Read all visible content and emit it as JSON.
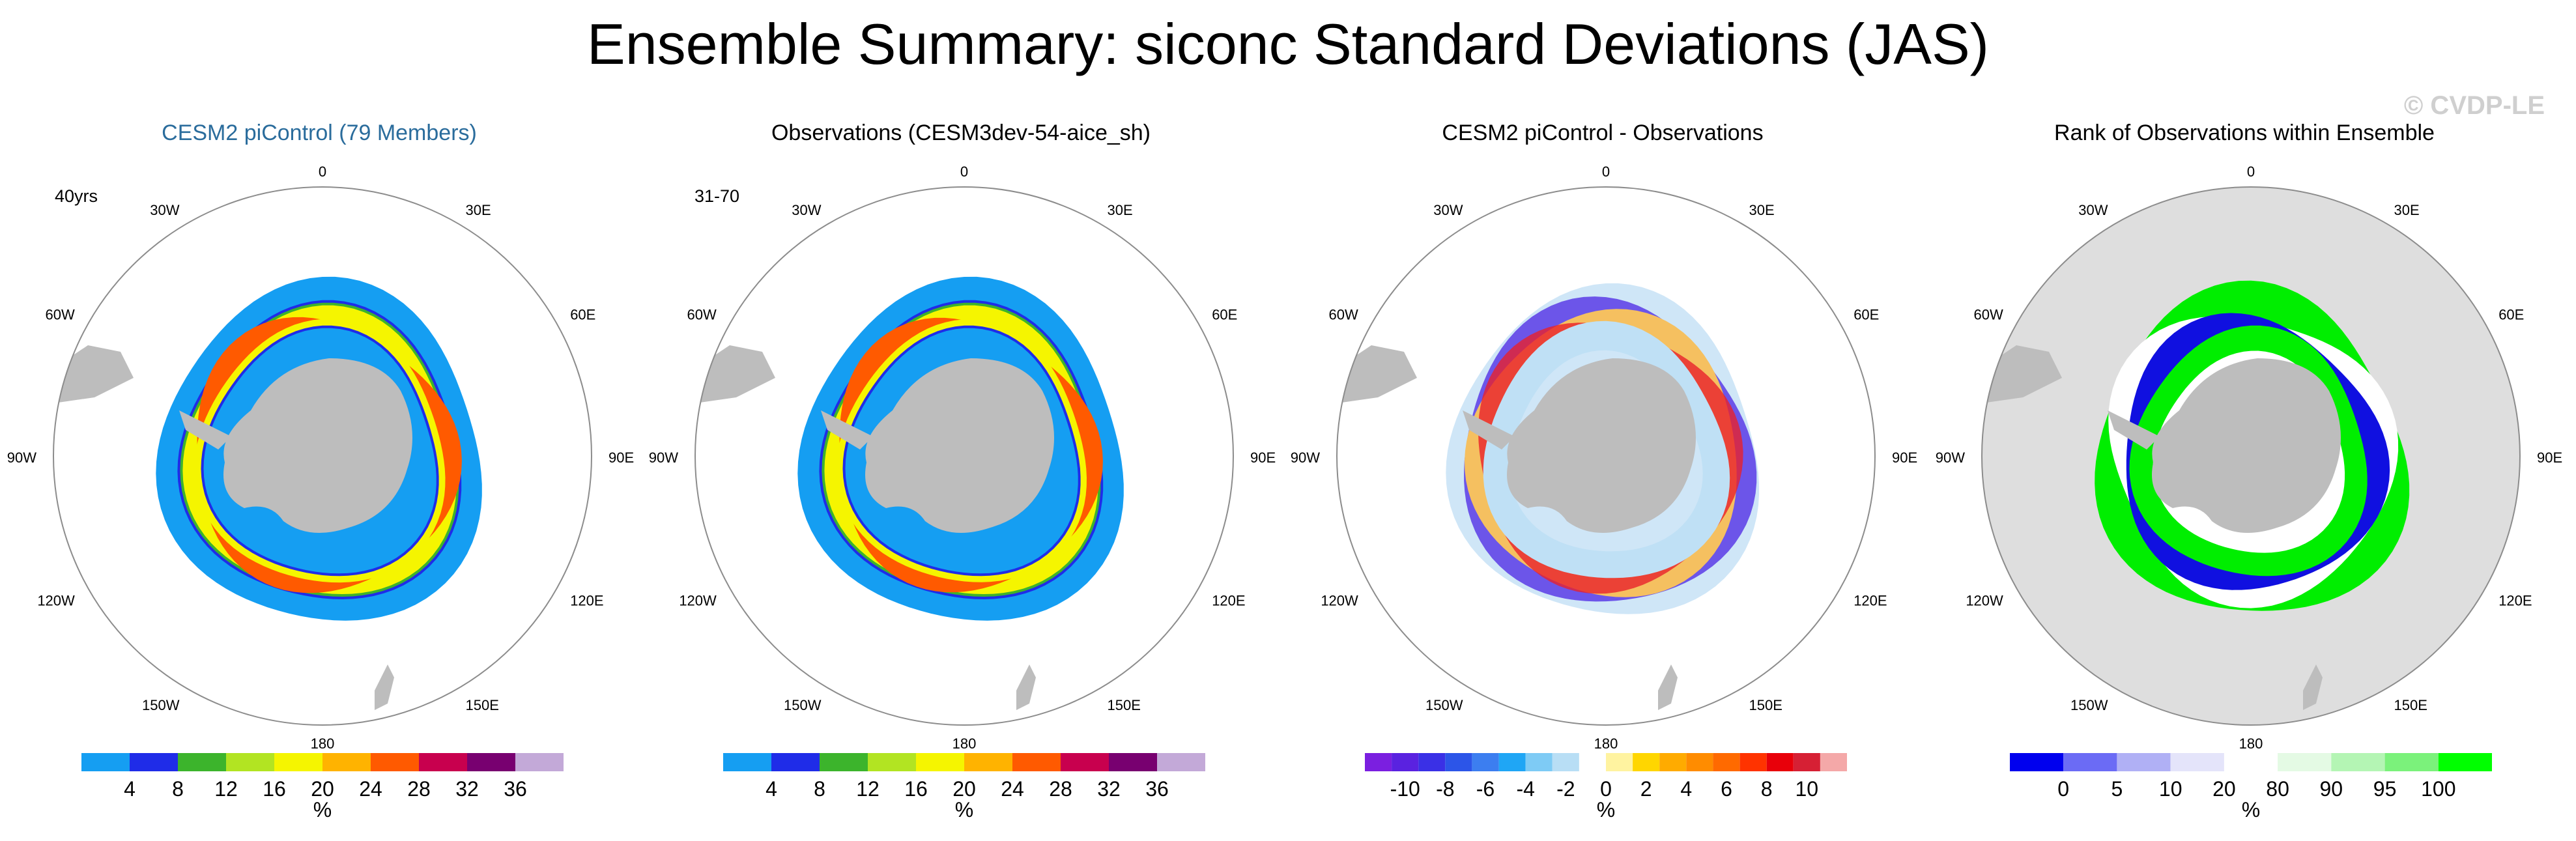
{
  "figure": {
    "title": "Ensemble Summary: siconc Standard Deviations (JAS)",
    "watermark": "© CVDP-LE",
    "land_color": "#bdbdbd",
    "ocean_color": "#ffffff",
    "ring_labels": [
      "0",
      "30E",
      "60E",
      "90E",
      "120E",
      "150E",
      "180",
      "150W",
      "120W",
      "90W",
      "60W",
      "30W"
    ]
  },
  "chart_data": [
    {
      "type": "heatmap",
      "panel_title": "CESM2 piControl (79 Members)",
      "title_color": "#2a6c9c",
      "annotation": "40yrs",
      "variable": "siconc standard deviation",
      "units": "%",
      "colorbar": {
        "tick_labels": [
          "4",
          "8",
          "12",
          "16",
          "20",
          "24",
          "28",
          "32",
          "36"
        ],
        "colors": [
          "#159ef2",
          "#1f2ce8",
          "#3cb42c",
          "#b2e422",
          "#f5f500",
          "#ffb300",
          "#ff5a00",
          "#c8004e",
          "#780070",
          "#c3a9d8"
        ],
        "units_label": "%"
      },
      "pattern": {
        "ring_strength": 1.0,
        "band_width": 1.0
      }
    },
    {
      "type": "heatmap",
      "panel_title": "Observations (CESM3dev-54-aice_sh)",
      "title_color": "#000000",
      "annotation": "31-70",
      "variable": "siconc standard deviation",
      "units": "%",
      "colorbar": {
        "tick_labels": [
          "4",
          "8",
          "12",
          "16",
          "20",
          "24",
          "28",
          "32",
          "36"
        ],
        "colors": [
          "#159ef2",
          "#1f2ce8",
          "#3cb42c",
          "#b2e422",
          "#f5f500",
          "#ffb300",
          "#ff5a00",
          "#c8004e",
          "#780070",
          "#c3a9d8"
        ],
        "units_label": "%"
      },
      "pattern": {
        "ring_strength": 1.05,
        "band_width": 1.25
      }
    },
    {
      "type": "heatmap",
      "panel_title": "CESM2 piControl - Observations",
      "title_color": "#000000",
      "annotation": "",
      "variable": "difference of standard deviations",
      "units": "%",
      "colorbar": {
        "tick_labels": [
          "-10",
          "-8",
          "-6",
          "-4",
          "-2",
          "0",
          "2",
          "4",
          "6",
          "8",
          "10"
        ],
        "colors": [
          "#7b1fe0",
          "#5a22e0",
          "#3a30e6",
          "#2c55e8",
          "#3c7ef0",
          "#1fa6f5",
          "#7ecbf5",
          "#b8def5",
          "#ffffff",
          "#fff3a0",
          "#ffd600",
          "#ffab00",
          "#ff8c00",
          "#ff6a00",
          "#ff3300",
          "#e8000a",
          "#d62034",
          "#f4a8a8"
        ],
        "units_label": "%"
      },
      "pattern": {
        "kind": "difference"
      }
    },
    {
      "type": "heatmap",
      "panel_title": "Rank of Observations within Ensemble",
      "title_color": "#000000",
      "annotation": "",
      "variable": "rank of observations",
      "units": "%",
      "colorbar": {
        "tick_labels": [
          "0",
          "5",
          "10",
          "20",
          "80",
          "90",
          "95",
          "100"
        ],
        "colors": [
          "#0000ee",
          "#6b6bf5",
          "#b0b0f5",
          "#e4e4fa",
          "#ffffff",
          "#e4fae4",
          "#b4f5b4",
          "#7bf27b",
          "#00ff00"
        ],
        "units_label": "%"
      },
      "pattern": {
        "kind": "rank"
      }
    }
  ]
}
